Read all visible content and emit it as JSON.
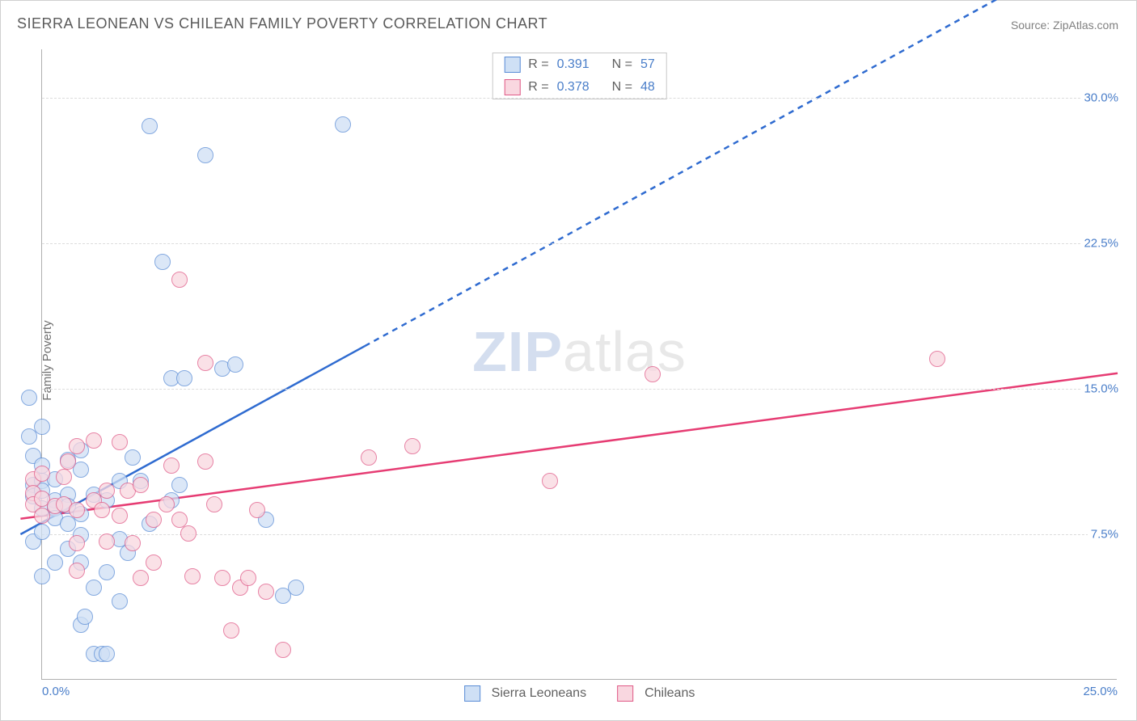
{
  "title": "SIERRA LEONEAN VS CHILEAN FAMILY POVERTY CORRELATION CHART",
  "source_label": "Source: ",
  "source_name": "ZipAtlas.com",
  "ylabel": "Family Poverty",
  "watermark_bold": "ZIP",
  "watermark_rest": "atlas",
  "chart": {
    "type": "scatter",
    "xlim": [
      0,
      25
    ],
    "ylim": [
      0,
      32.5
    ],
    "xticks": [
      {
        "v": 0,
        "l": "0.0%"
      },
      {
        "v": 25,
        "l": "25.0%"
      }
    ],
    "yticks": [
      {
        "v": 7.5,
        "l": "7.5%"
      },
      {
        "v": 15,
        "l": "15.0%"
      },
      {
        "v": 22.5,
        "l": "22.5%"
      },
      {
        "v": 30,
        "l": "30.0%"
      }
    ],
    "grid_color": "#dcdcdc",
    "background_color": "#ffffff",
    "axis_color": "#b0b0b0",
    "tick_color": "#4a7ec9",
    "marker_radius": 10,
    "series": [
      {
        "name": "Sierra Leoneans",
        "fill": "#cfe0f5",
        "stroke": "#5b8dd6",
        "fill_opacity": 0.75,
        "trend": {
          "x1": -0.5,
          "y1": 7.5,
          "x2": 7.5,
          "y2": 17.2,
          "x3": 25,
          "y3": 38.5,
          "color": "#2f6bd0",
          "width": 2.5,
          "dash_from_x": 7.5
        },
        "stats": {
          "R_label": "R = ",
          "R": "0.391",
          "N_label": "N = ",
          "N": "57"
        },
        "points": [
          [
            -0.3,
            14.5
          ],
          [
            -0.3,
            12.5
          ],
          [
            -0.2,
            11.5
          ],
          [
            -0.2,
            10.0
          ],
          [
            -0.2,
            9.4
          ],
          [
            -0.2,
            7.1
          ],
          [
            0.0,
            13.0
          ],
          [
            0.0,
            11.0
          ],
          [
            0.0,
            10.2
          ],
          [
            0.0,
            9.7
          ],
          [
            0.0,
            8.8
          ],
          [
            0.0,
            7.6
          ],
          [
            0.0,
            5.3
          ],
          [
            0.3,
            10.3
          ],
          [
            0.3,
            9.2
          ],
          [
            0.3,
            8.8
          ],
          [
            0.3,
            8.3
          ],
          [
            0.3,
            6.0
          ],
          [
            0.6,
            11.3
          ],
          [
            0.6,
            9.5
          ],
          [
            0.6,
            8.9
          ],
          [
            0.6,
            8.0
          ],
          [
            0.6,
            6.7
          ],
          [
            0.9,
            11.8
          ],
          [
            0.9,
            10.8
          ],
          [
            0.9,
            8.5
          ],
          [
            0.9,
            7.4
          ],
          [
            0.9,
            6.0
          ],
          [
            0.9,
            2.8
          ],
          [
            1.2,
            9.5
          ],
          [
            1.2,
            4.7
          ],
          [
            1.2,
            1.3
          ],
          [
            1.4,
            1.3
          ],
          [
            1.5,
            1.3
          ],
          [
            1.5,
            9.2
          ],
          [
            1.5,
            5.5
          ],
          [
            1.8,
            10.2
          ],
          [
            1.8,
            7.2
          ],
          [
            1.8,
            4.0
          ],
          [
            2.1,
            11.4
          ],
          [
            2.3,
            10.2
          ],
          [
            2.5,
            28.5
          ],
          [
            2.5,
            8.0
          ],
          [
            2.8,
            21.5
          ],
          [
            3.0,
            15.5
          ],
          [
            3.0,
            9.2
          ],
          [
            3.2,
            10.0
          ],
          [
            3.3,
            15.5
          ],
          [
            3.8,
            27.0
          ],
          [
            4.2,
            16.0
          ],
          [
            4.5,
            16.2
          ],
          [
            5.2,
            8.2
          ],
          [
            5.6,
            4.3
          ],
          [
            5.9,
            4.7
          ],
          [
            7.0,
            28.6
          ],
          [
            1.0,
            3.2
          ],
          [
            2.0,
            6.5
          ]
        ]
      },
      {
        "name": "Chileans",
        "fill": "#f9d7e0",
        "stroke": "#e05a87",
        "fill_opacity": 0.75,
        "trend": {
          "x1": -0.5,
          "y1": 8.3,
          "x2": 25,
          "y2": 15.8,
          "color": "#e63c73",
          "width": 2.5
        },
        "stats": {
          "R_label": "R = ",
          "R": "0.378",
          "N_label": "N = ",
          "N": "48"
        },
        "points": [
          [
            -0.2,
            10.3
          ],
          [
            -0.2,
            9.6
          ],
          [
            -0.2,
            9.0
          ],
          [
            0.0,
            10.6
          ],
          [
            0.0,
            9.3
          ],
          [
            0.0,
            8.4
          ],
          [
            0.3,
            8.9
          ],
          [
            0.5,
            10.4
          ],
          [
            0.5,
            9.0
          ],
          [
            0.6,
            11.2
          ],
          [
            0.8,
            12.0
          ],
          [
            0.8,
            8.7
          ],
          [
            0.8,
            7.0
          ],
          [
            0.8,
            5.6
          ],
          [
            1.2,
            9.2
          ],
          [
            1.2,
            12.3
          ],
          [
            1.4,
            8.7
          ],
          [
            1.5,
            7.1
          ],
          [
            1.5,
            9.7
          ],
          [
            1.8,
            12.2
          ],
          [
            1.8,
            8.4
          ],
          [
            2.0,
            9.7
          ],
          [
            2.1,
            7.0
          ],
          [
            2.3,
            10.0
          ],
          [
            2.3,
            5.2
          ],
          [
            2.6,
            8.2
          ],
          [
            2.6,
            6.0
          ],
          [
            2.9,
            9.0
          ],
          [
            3.0,
            11.0
          ],
          [
            3.2,
            20.6
          ],
          [
            3.2,
            8.2
          ],
          [
            3.4,
            7.5
          ],
          [
            3.5,
            5.3
          ],
          [
            3.8,
            11.2
          ],
          [
            3.8,
            16.3
          ],
          [
            4.0,
            9.0
          ],
          [
            4.2,
            5.2
          ],
          [
            4.4,
            2.5
          ],
          [
            4.6,
            4.7
          ],
          [
            4.8,
            5.2
          ],
          [
            5.0,
            8.7
          ],
          [
            5.2,
            4.5
          ],
          [
            5.6,
            1.5
          ],
          [
            7.6,
            11.4
          ],
          [
            8.6,
            12.0
          ],
          [
            11.8,
            10.2
          ],
          [
            14.2,
            15.7
          ],
          [
            20.8,
            16.5
          ]
        ]
      }
    ]
  }
}
